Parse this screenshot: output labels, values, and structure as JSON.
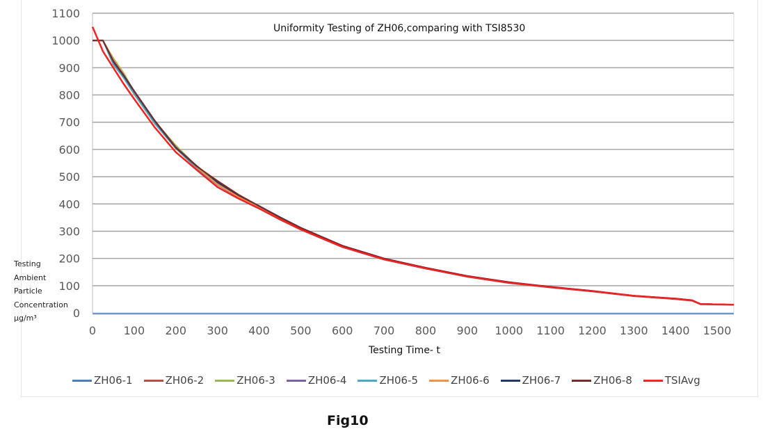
{
  "caption": "Fig10",
  "chart_data": {
    "type": "line",
    "title": "Uniformity Testing of ZH06,comparing with TSI8530",
    "xlabel": "Testing Time- t",
    "ylabel": [
      "Testing",
      "Ambient",
      "Particle",
      "Concentration",
      "μg/m³"
    ],
    "xlim": [
      0,
      1540
    ],
    "ylim": [
      0,
      1100
    ],
    "xticks": [
      0,
      100,
      200,
      300,
      400,
      500,
      600,
      700,
      800,
      900,
      1000,
      1100,
      1200,
      1300,
      1400,
      1500
    ],
    "yticks": [
      0,
      100,
      200,
      300,
      400,
      500,
      600,
      700,
      800,
      900,
      1000,
      1100
    ],
    "grid": "horizontal",
    "legend_position": "bottom",
    "x": [
      0,
      25,
      50,
      75,
      100,
      150,
      200,
      250,
      300,
      350,
      400,
      450,
      500,
      600,
      700,
      800,
      900,
      1000,
      1100,
      1200,
      1300,
      1400,
      1440,
      1460,
      1540
    ],
    "series": [
      {
        "name": "ZH06-1",
        "color": "#4a7ebb",
        "values": [
          1000,
          1000,
          915,
          865,
          805,
          695,
          612,
          535,
          470,
          428,
          392,
          350,
          312,
          245,
          198,
          165,
          135,
          113,
          95,
          80,
          63,
          52,
          46,
          33,
          30
        ]
      },
      {
        "name": "ZH06-2",
        "color": "#be4b48",
        "values": [
          1000,
          1000,
          918,
          868,
          808,
          698,
          605,
          533,
          474,
          426,
          388,
          348,
          310,
          244,
          197,
          164,
          134,
          112,
          94,
          80,
          62,
          52,
          46,
          33,
          30
        ]
      },
      {
        "name": "ZH06-3",
        "color": "#98b954",
        "values": [
          1000,
          1000,
          935,
          880,
          812,
          702,
          615,
          538,
          476,
          430,
          390,
          350,
          311,
          245,
          198,
          165,
          135,
          112,
          95,
          80,
          63,
          52,
          46,
          33,
          30
        ]
      },
      {
        "name": "ZH06-4",
        "color": "#7d60a0",
        "values": [
          1000,
          1000,
          920,
          870,
          810,
          700,
          607,
          535,
          477,
          428,
          391,
          349,
          311,
          246,
          199,
          166,
          135,
          113,
          95,
          81,
          63,
          52,
          46,
          33,
          30
        ]
      },
      {
        "name": "ZH06-5",
        "color": "#46aac5",
        "values": [
          1000,
          1000,
          912,
          862,
          803,
          694,
          604,
          530,
          470,
          425,
          389,
          348,
          310,
          244,
          197,
          164,
          134,
          112,
          94,
          80,
          62,
          52,
          46,
          33,
          30
        ]
      },
      {
        "name": "ZH06-6",
        "color": "#f69240",
        "values": [
          1000,
          1000,
          930,
          875,
          810,
          705,
          610,
          536,
          472,
          427,
          385,
          345,
          308,
          243,
          196,
          163,
          133,
          111,
          94,
          79,
          62,
          51,
          45,
          33,
          30
        ]
      },
      {
        "name": "ZH06-7",
        "color": "#1f3864",
        "values": [
          1000,
          1000,
          925,
          872,
          815,
          705,
          608,
          540,
          480,
          432,
          393,
          352,
          313,
          247,
          200,
          166,
          136,
          113,
          96,
          81,
          63,
          53,
          47,
          33,
          30
        ]
      },
      {
        "name": "ZH06-8",
        "color": "#772c2a",
        "values": [
          1000,
          1000,
          922,
          870,
          812,
          703,
          606,
          538,
          485,
          435,
          392,
          350,
          312,
          246,
          199,
          165,
          135,
          112,
          95,
          80,
          63,
          52,
          46,
          33,
          30
        ]
      },
      {
        "name": "TSIAvg",
        "color": "#ff2020",
        "values": [
          1050,
          960,
          900,
          840,
          785,
          680,
          590,
          525,
          462,
          420,
          383,
          343,
          306,
          242,
          196,
          163,
          133,
          110,
          94,
          79,
          62,
          51,
          45,
          32,
          30
        ]
      }
    ]
  }
}
